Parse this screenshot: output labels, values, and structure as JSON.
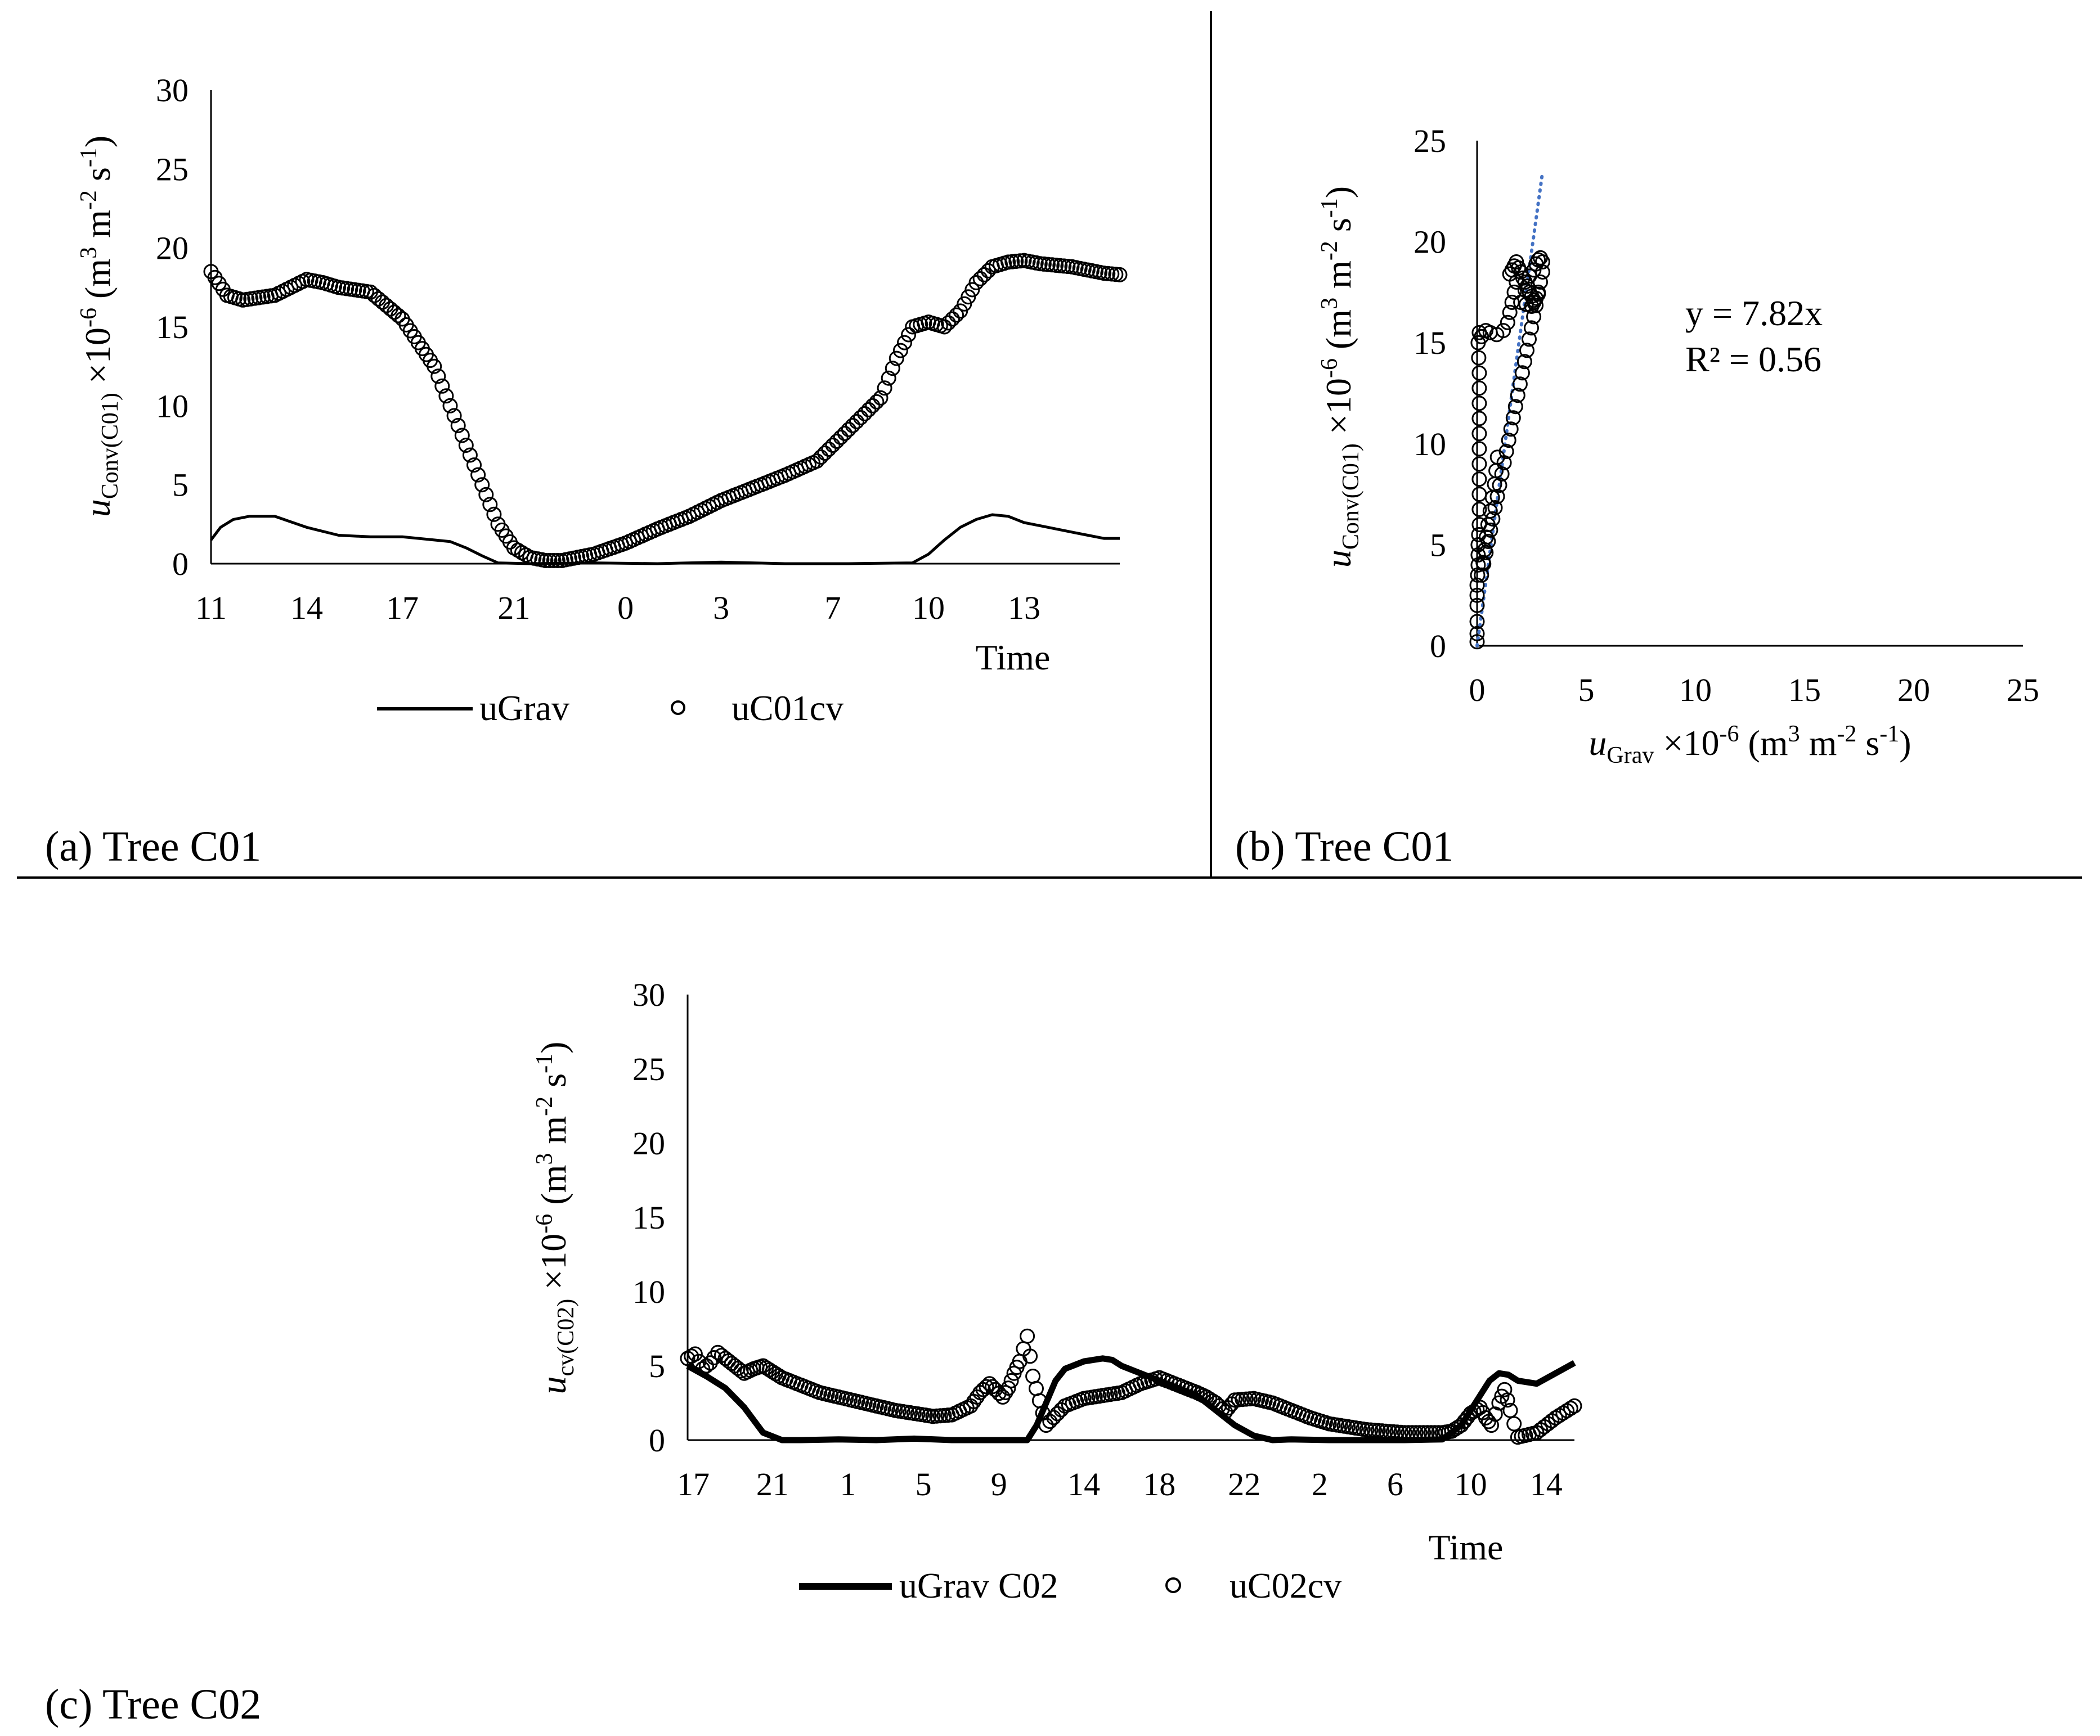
{
  "figure": {
    "panels": [
      {
        "label": "(a) Tree C01"
      },
      {
        "label": "(b) Tree C01"
      },
      {
        "label": "(c) Tree C02"
      }
    ]
  },
  "chart_data": [
    {
      "id": "a",
      "type": "line",
      "title": "",
      "panel_label": "(a) Tree C01",
      "xlabel": "Time",
      "ylabel": {
        "symbol": "u",
        "subscript": "Conv(C01)",
        "rest": " ×10",
        "exponent": "-6",
        "units_open": " (m",
        "u1": "3",
        "u2": " m",
        "u3": "-2",
        "u4": " s",
        "u5": "-1",
        "units_close": ")"
      },
      "ylim": [
        0,
        30
      ],
      "yticks": [
        0,
        5,
        10,
        15,
        20,
        25,
        30
      ],
      "xlim": [
        0,
        28.5
      ],
      "x_unit": "hours elapsed",
      "xtick_labels": [
        "11",
        "14",
        "17",
        "21",
        "0",
        "3",
        "7",
        "10",
        "13"
      ],
      "xtick_hours": [
        0,
        3,
        6,
        9.5,
        13,
        16,
        19.5,
        22.5,
        25.5
      ],
      "legend": [
        "uGrav",
        "uC01cv"
      ],
      "legend_position": "bottom",
      "series": [
        {
          "name": "uGrav",
          "style": "line",
          "x": [
            0,
            0.3,
            0.7,
            1.2,
            2,
            3,
            4,
            5,
            6,
            7,
            7.5,
            8,
            8.5,
            9,
            10,
            12,
            14,
            16,
            18,
            20,
            22,
            22.5,
            23,
            23.5,
            24,
            24.5,
            25,
            25.5,
            26,
            27,
            27.5,
            28,
            28.5
          ],
          "y": [
            1.5,
            2.3,
            2.8,
            3.0,
            3.0,
            2.3,
            1.8,
            1.7,
            1.7,
            1.5,
            1.4,
            1.0,
            0.5,
            0.05,
            0.0,
            0.05,
            0.0,
            0.1,
            0.0,
            0.0,
            0.05,
            0.6,
            1.5,
            2.3,
            2.8,
            3.1,
            3.0,
            2.6,
            2.4,
            2.0,
            1.8,
            1.6,
            1.6
          ]
        },
        {
          "name": "uC01cv",
          "style": "markers",
          "x": [
            0,
            0.5,
            1,
            2,
            3,
            3.5,
            4,
            5,
            6,
            7,
            7.5,
            8,
            8.5,
            9,
            9.5,
            10,
            10.5,
            11,
            12,
            13,
            14,
            15,
            16,
            17,
            18,
            19,
            20,
            21,
            21.5,
            22,
            22.5,
            23,
            23.5,
            24,
            24.5,
            25,
            25.5,
            26,
            27,
            28,
            28.5
          ],
          "y": [
            18.5,
            17.0,
            16.7,
            17.0,
            18.0,
            17.8,
            17.5,
            17.2,
            15.5,
            12.5,
            10.0,
            7.5,
            5.0,
            2.5,
            1.0,
            0.4,
            0.2,
            0.2,
            0.6,
            1.3,
            2.2,
            3.0,
            4.0,
            4.8,
            5.6,
            6.5,
            8.5,
            10.5,
            13.0,
            15.0,
            15.3,
            15.0,
            16.0,
            17.8,
            18.8,
            19.1,
            19.2,
            19.0,
            18.8,
            18.4,
            18.3
          ]
        }
      ]
    },
    {
      "id": "b",
      "type": "scatter",
      "title": "",
      "panel_label": "(b) Tree C01",
      "xlabel": {
        "symbol": "u",
        "subscript": "Grav",
        "rest": " ×10",
        "exponent": "-6",
        "units_open": " (m",
        "u1": "3",
        "u2": " m",
        "u3": "-2",
        "u4": " s",
        "u5": "-1",
        "units_close": ")"
      },
      "ylabel": {
        "symbol": "u",
        "subscript": "Conv(C01)",
        "rest": " ×10",
        "exponent": "-6",
        "units_open": " (m",
        "u1": "3",
        "u2": " m",
        "u3": "-2",
        "u4": " s",
        "u5": "-1",
        "units_close": ")"
      },
      "xlim": [
        0,
        25
      ],
      "ylim": [
        0,
        25
      ],
      "xticks": [
        0,
        5,
        10,
        15,
        20,
        25
      ],
      "yticks": [
        0,
        5,
        10,
        15,
        20,
        25
      ],
      "trendline": {
        "slope": 7.82,
        "x_range": [
          0,
          3.0
        ],
        "style": "dotted",
        "color": "#4472C4"
      },
      "equation": "y = 7.82x",
      "r2": "R² = 0.56",
      "series": [
        {
          "name": "uC01cv vs uGrav",
          "style": "markers",
          "x": [
            0,
            0,
            0,
            0,
            0,
            0.05,
            0.05,
            0.1,
            0.1,
            0.1,
            0.1,
            0.1,
            0.1,
            0.05,
            0.1,
            0.2,
            0.4,
            0.6,
            0.9,
            1.2,
            1.4,
            1.5,
            1.6,
            1.7,
            1.8,
            1.5,
            1.6,
            1.7,
            1.8,
            1.9,
            2.0,
            2.1,
            2.2,
            2.3,
            2.4,
            2.5,
            2.6,
            2.7,
            2.8,
            2.9,
            3.0,
            3.0,
            2.9,
            2.8,
            2.7,
            2.6,
            2.4,
            2.2,
            2.0,
            2.5,
            2.6,
            2.8,
            0.2,
            0.5,
            0.8,
            1.0
          ],
          "y": [
            0.2,
            0.6,
            1.2,
            2.0,
            3.0,
            4.0,
            5.0,
            6.0,
            7.5,
            9.0,
            10.5,
            12.0,
            13.5,
            15.0,
            15.5,
            15.3,
            15.6,
            15.5,
            15.4,
            15.6,
            16.0,
            16.5,
            17.0,
            17.5,
            18.0,
            18.4,
            18.6,
            18.8,
            19.0,
            18.7,
            18.5,
            18.2,
            18.0,
            17.8,
            17.5,
            17.3,
            17.0,
            17.2,
            17.5,
            18.0,
            18.5,
            19.0,
            19.2,
            19.1,
            18.9,
            18.6,
            18.3,
            17.6,
            17.0,
            16.8,
            17.1,
            17.4,
            3.5,
            6.0,
            8.0,
            10.0
          ]
        }
      ]
    },
    {
      "id": "c",
      "type": "line",
      "title": "",
      "panel_label": "(c) Tree C02",
      "xlabel": "Time",
      "ylabel": {
        "symbol": "u",
        "subscript": "cv(C02)",
        "rest": " ×10",
        "exponent": "-6",
        "units_open": " (m",
        "u1": "3",
        "u2": " m",
        "u3": "-2",
        "u4": " s",
        "u5": "-1",
        "units_close": ")"
      },
      "ylim": [
        0,
        30
      ],
      "yticks": [
        0,
        5,
        10,
        15,
        20,
        25,
        30
      ],
      "xlim": [
        0,
        47
      ],
      "x_unit": "hours elapsed",
      "xtick_labels": [
        "17",
        "21",
        "1",
        "5",
        "9",
        "14",
        "18",
        "22",
        "2",
        "6",
        "10",
        "14"
      ],
      "xtick_hours": [
        0.3,
        4.5,
        8.5,
        12.5,
        16.5,
        21,
        25,
        29.5,
        33.5,
        37.5,
        41.5,
        45.5
      ],
      "legend": [
        "uGrav C02",
        "uC02cv"
      ],
      "legend_position": "bottom",
      "series": [
        {
          "name": "uGrav C02",
          "style": "line",
          "x": [
            0,
            1,
            2,
            3,
            4,
            5,
            6,
            8,
            10,
            12,
            14,
            18,
            18.5,
            19,
            19.5,
            20,
            21,
            22,
            22.5,
            23,
            24,
            25,
            26,
            27,
            28,
            29,
            30,
            31,
            32,
            34,
            36,
            38,
            40,
            41,
            42,
            42.5,
            43,
            43.5,
            44,
            45,
            46,
            47
          ],
          "y": [
            5.0,
            4.3,
            3.5,
            2.2,
            0.5,
            0.0,
            0.0,
            0.05,
            0.0,
            0.1,
            0.0,
            0.0,
            1.0,
            2.5,
            4.0,
            4.8,
            5.3,
            5.5,
            5.4,
            5.0,
            4.5,
            4.0,
            3.5,
            3.0,
            2.0,
            1.0,
            0.3,
            0.0,
            0.05,
            0.0,
            0.0,
            0.0,
            0.05,
            1.0,
            3.0,
            4.0,
            4.5,
            4.4,
            4.0,
            3.8,
            4.5,
            5.2
          ]
        },
        {
          "name": "uC02cv",
          "style": "markers",
          "x": [
            0,
            0.4,
            0.8,
            1.2,
            1.6,
            2,
            2.5,
            3,
            3.5,
            4,
            4.5,
            5,
            6,
            7,
            8,
            9,
            10,
            11,
            12,
            13,
            14,
            15,
            15.5,
            16,
            16.3,
            16.7,
            17,
            17.3,
            17.6,
            18,
            18.3,
            19,
            20,
            21,
            22,
            23,
            24,
            25,
            26,
            27,
            27.5,
            28,
            28.5,
            29,
            30,
            31,
            32,
            33,
            34,
            35,
            36,
            37,
            38,
            39,
            40,
            40.5,
            41,
            41.5,
            42,
            42.3,
            42.6,
            43,
            43.3,
            43.6,
            44,
            45,
            46,
            47
          ],
          "y": [
            5.5,
            5.8,
            4.8,
            5.2,
            5.9,
            5.5,
            5.0,
            4.5,
            4.8,
            5.0,
            4.6,
            4.2,
            3.7,
            3.2,
            2.9,
            2.6,
            2.3,
            2.0,
            1.8,
            1.6,
            1.7,
            2.3,
            3.2,
            3.8,
            3.4,
            2.9,
            3.5,
            4.5,
            5.3,
            7.0,
            4.3,
            1.0,
            2.3,
            2.8,
            3.0,
            3.2,
            3.8,
            4.2,
            3.7,
            3.2,
            2.9,
            2.5,
            1.9,
            2.7,
            2.8,
            2.5,
            2.0,
            1.5,
            1.1,
            0.9,
            0.7,
            0.6,
            0.5,
            0.5,
            0.5,
            0.6,
            1.0,
            1.8,
            2.2,
            1.5,
            1.0,
            2.5,
            3.4,
            2.0,
            0.2,
            0.5,
            1.5,
            2.3
          ]
        }
      ]
    }
  ]
}
